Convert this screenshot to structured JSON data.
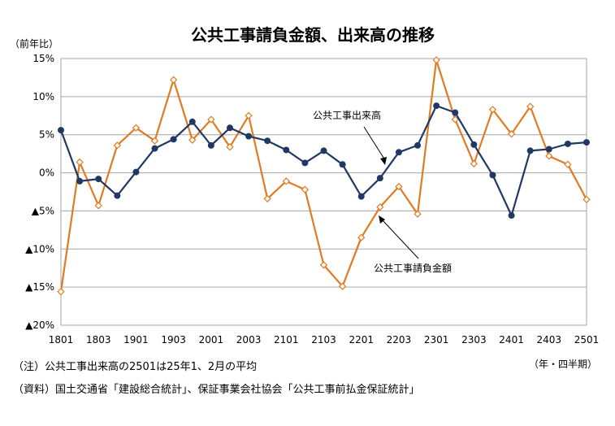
{
  "chart_data": {
    "type": "line",
    "title": "公共工事請負金額、出来高の推移",
    "ylabel": "（前年比）",
    "xlabel": "（年・四半期）",
    "ylim": [
      -20,
      15
    ],
    "y_ticks": [
      {
        "value": 15,
        "label": "15%"
      },
      {
        "value": 10,
        "label": "10%"
      },
      {
        "value": 5,
        "label": "5%"
      },
      {
        "value": 0,
        "label": "0%"
      },
      {
        "value": -5,
        "label": "▲5%"
      },
      {
        "value": -10,
        "label": "▲10%"
      },
      {
        "value": -15,
        "label": "▲15%"
      },
      {
        "value": -20,
        "label": "▲20%"
      }
    ],
    "x_categories": [
      "1801",
      "1802",
      "1803",
      "1804",
      "1901",
      "1902",
      "1903",
      "1904",
      "2001",
      "2002",
      "2003",
      "2004",
      "2101",
      "2102",
      "2103",
      "2104",
      "2201",
      "2202",
      "2203",
      "2204",
      "2301",
      "2302",
      "2303",
      "2304",
      "2401",
      "2402",
      "2403",
      "2404",
      "2501"
    ],
    "x_tick_labels": [
      "1801",
      "1803",
      "1901",
      "1903",
      "2001",
      "2003",
      "2101",
      "2103",
      "2201",
      "2203",
      "2301",
      "2303",
      "2401",
      "2403",
      "2501"
    ],
    "grid": true,
    "series": [
      {
        "name": "公共工事出来高",
        "color": "#1f3864",
        "marker": "circle",
        "values": [
          5.6,
          -1.1,
          -0.8,
          -3.0,
          0.1,
          3.2,
          4.4,
          6.7,
          3.6,
          5.9,
          4.8,
          4.2,
          3.0,
          1.3,
          2.9,
          1.1,
          -3.1,
          -0.7,
          2.7,
          3.6,
          8.8,
          7.9,
          3.7,
          -0.3,
          -5.6,
          2.9,
          3.1,
          3.8,
          4.0
        ]
      },
      {
        "name": "公共工事請負金額",
        "color": "#e07b21",
        "marker": "diamond",
        "values": [
          -15.6,
          1.4,
          -4.3,
          3.6,
          5.9,
          4.2,
          12.2,
          4.3,
          7.0,
          3.4,
          7.5,
          -3.4,
          -1.1,
          -2.2,
          -12.1,
          -14.9,
          -8.5,
          -4.5,
          -1.8,
          -5.4,
          14.8,
          7.0,
          1.2,
          8.3,
          5.1,
          8.7,
          2.2,
          1.1,
          -3.5
        ]
      }
    ]
  },
  "notes": [
    "（注）公共工事出来高の2501は25年1、2月の平均",
    "（資料）国土交通省「建設総合統計」、保証事業会社協会「公共工事前払金保証統計」"
  ]
}
